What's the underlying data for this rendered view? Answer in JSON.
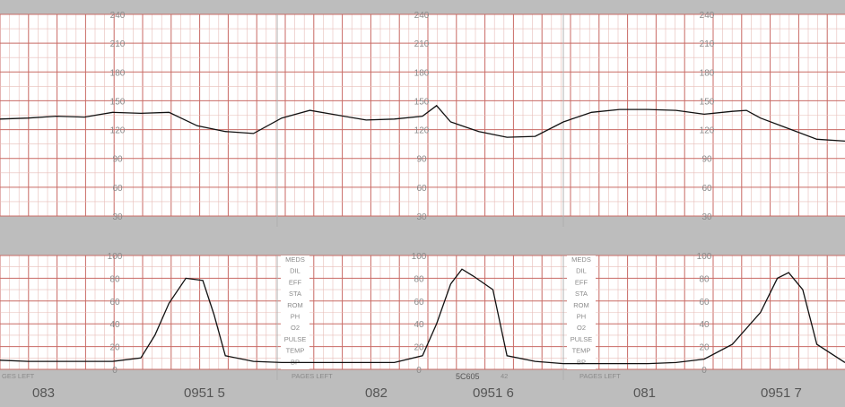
{
  "chart_data": [
    {
      "type": "line",
      "title": "",
      "xlabel": "",
      "ylabel": "",
      "ylim": [
        30,
        240
      ],
      "yticks": [
        240,
        210,
        180,
        150,
        120,
        90,
        60,
        30
      ],
      "grid": true,
      "series": [
        {
          "name": "",
          "x": [
            0,
            0.1,
            0.2,
            0.3,
            0.4,
            0.5,
            0.6,
            0.7,
            0.8,
            0.9,
            1.0,
            1.1,
            1.2,
            1.3,
            1.4,
            1.5,
            1.55,
            1.6,
            1.7,
            1.8,
            1.9,
            2.0,
            2.1,
            2.2,
            2.3,
            2.4,
            2.5,
            2.6,
            2.65,
            2.7,
            2.8,
            2.9,
            3.0
          ],
          "values": [
            131,
            132,
            134,
            133,
            138,
            137,
            138,
            124,
            118,
            116,
            132,
            140,
            135,
            130,
            131,
            134,
            145,
            128,
            118,
            112,
            113,
            128,
            138,
            141,
            141,
            140,
            136,
            139,
            140,
            132,
            121,
            110,
            108
          ]
        }
      ]
    },
    {
      "type": "line",
      "title": "",
      "xlabel": "",
      "ylabel": "",
      "ylim": [
        0,
        100
      ],
      "yticks": [
        100,
        80,
        60,
        40,
        20,
        0
      ],
      "grid": true,
      "series": [
        {
          "name": "",
          "x": [
            0,
            0.1,
            0.2,
            0.3,
            0.4,
            0.5,
            0.55,
            0.6,
            0.66,
            0.72,
            0.76,
            0.8,
            0.9,
            1.0,
            1.1,
            1.2,
            1.3,
            1.4,
            1.5,
            1.55,
            1.6,
            1.64,
            1.68,
            1.75,
            1.8,
            1.9,
            2.0,
            2.1,
            2.2,
            2.3,
            2.4,
            2.5,
            2.6,
            2.7,
            2.76,
            2.8,
            2.85,
            2.9,
            3.0
          ],
          "values": [
            8,
            7,
            7,
            7,
            7,
            10,
            30,
            58,
            80,
            78,
            48,
            12,
            7,
            6,
            6,
            6,
            6,
            6,
            12,
            40,
            75,
            88,
            82,
            70,
            12,
            7,
            5,
            5,
            5,
            5,
            6,
            9,
            22,
            50,
            80,
            85,
            70,
            22,
            6
          ]
        }
      ]
    }
  ],
  "tocolabels": {
    "ylabels_top": [
      "240",
      "210",
      "180",
      "150",
      "120",
      "90",
      "60",
      "30"
    ],
    "ylabels_bottom": [
      "100",
      "80",
      "60",
      "40",
      "20",
      "0"
    ],
    "panel_labels": [
      "MEDS",
      "DIL",
      "EFF",
      "STA",
      "ROM",
      "PH",
      "O2",
      "PULSE",
      "TEMP",
      "BP"
    ]
  },
  "footer": {
    "pages_left": "PAGES LEFT",
    "pages_left_partial": "GES LEFT",
    "page_numbers": [
      "083",
      "082",
      "081"
    ],
    "timestamps": [
      "0951 5",
      "0951 6",
      "0951 7"
    ],
    "serial": "5C605",
    "serial_suffix": "42"
  },
  "colors": {
    "paper": "#ffffff",
    "grid_major": "#c86a64",
    "grid_minor": "#e7bdb8",
    "band": "#bdbdbd",
    "trace": "#111111",
    "label": "#8a8a8a"
  }
}
